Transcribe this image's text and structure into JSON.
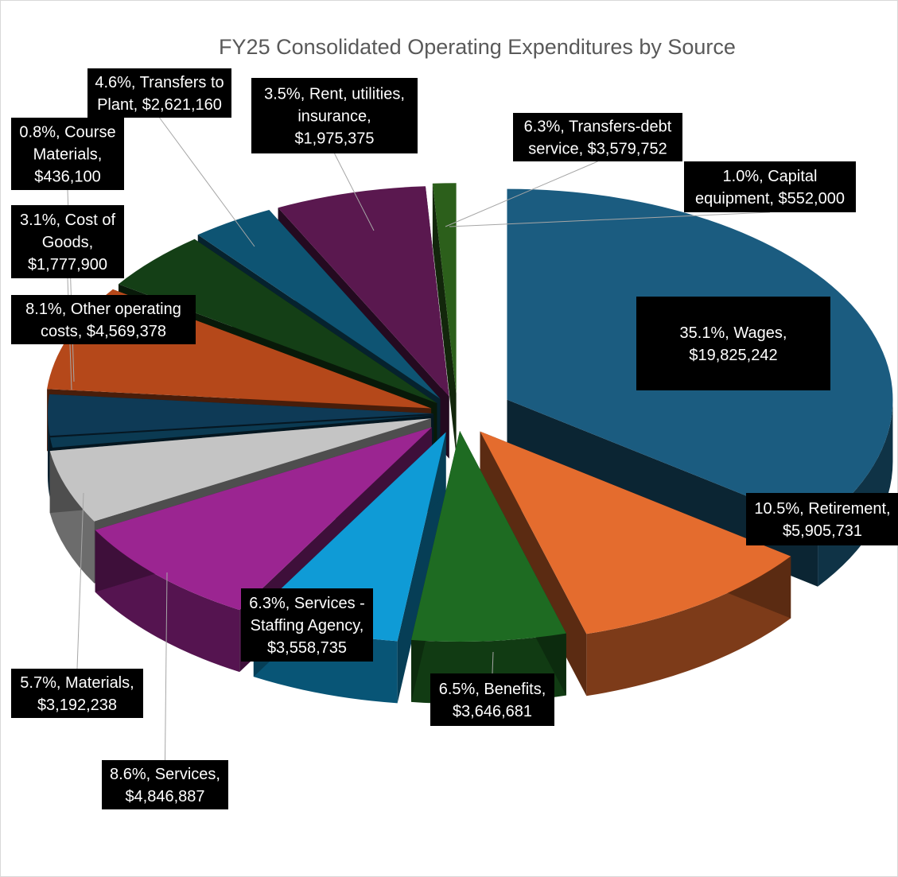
{
  "chart_data": {
    "type": "pie",
    "variant": "3d-exploded",
    "title": "FY25 Consolidated Operating Expenditures by Source",
    "slices": [
      {
        "label": "35.1%, Wages, $19,825,242",
        "percent": 35.1,
        "value": 19825242,
        "color": "#1b5c80"
      },
      {
        "label": "10.5%, Retirement, $5,905,731",
        "percent": 10.5,
        "value": 5905731,
        "color": "#e46c2e"
      },
      {
        "label": "6.5%, Benefits, $3,646,681",
        "percent": 6.5,
        "value": 3646681,
        "color": "#1e6b22"
      },
      {
        "label": "6.3%, Services - Staffing Agency, $3,558,735",
        "percent": 6.3,
        "value": 3558735,
        "color": "#0f9bd6"
      },
      {
        "label": "8.6%, Services, $4,846,887",
        "percent": 8.6,
        "value": 4846887,
        "color": "#9b2591"
      },
      {
        "label": "5.7%, Materials, $3,192,238",
        "percent": 5.7,
        "value": 3192238,
        "color": "#c4c4c4"
      },
      {
        "label": "0.8%, Course Materials, $436,100",
        "percent": 0.8,
        "value": 436100,
        "color": "#0b3a52"
      },
      {
        "label": "3.1%, Cost of Goods, $1,777,900",
        "percent": 3.1,
        "value": 1777900,
        "color": "#0e3a56"
      },
      {
        "label": "8.1%, Other operating costs, $4,569,378",
        "percent": 8.1,
        "value": 4569378,
        "color": "#b5481a"
      },
      {
        "label": "4.6%, Transfers to Plant, $2,621,160",
        "percent": 4.6,
        "value": 2621160,
        "color": "#143f16"
      },
      {
        "label": "3.5%, Rent, utilities, insurance, $1,975,375",
        "percent": 3.5,
        "value": 1975375,
        "color": "#0e5473"
      },
      {
        "label": "6.3%, Transfers-debt service, $3,579,752",
        "percent": 6.3,
        "value": 3579752,
        "color": "#5a184f"
      },
      {
        "label": "1.0%, Capital equipment, $552,000",
        "percent": 1.0,
        "value": 552000,
        "color": "#2c5f1b"
      }
    ],
    "extra_slice_color": "#1b8cc4",
    "legend": "none",
    "data_labels": "callouts"
  },
  "callouts": [
    {
      "lines": [
        "35.1%, Wages,",
        "$19,825,242"
      ]
    },
    {
      "lines": [
        "10.5%, Retirement,",
        "$5,905,731"
      ]
    },
    {
      "lines": [
        "6.5%, Benefits,",
        "$3,646,681"
      ]
    },
    {
      "lines": [
        "6.3%, Services -",
        "Staffing Agency,",
        "$3,558,735"
      ]
    },
    {
      "lines": [
        "8.6%, Services,",
        "$4,846,887"
      ]
    },
    {
      "lines": [
        "5.7%, Materials,",
        "$3,192,238"
      ]
    },
    {
      "lines": [
        "0.8%, Course",
        "Materials,",
        "$436,100"
      ]
    },
    {
      "lines": [
        "3.1%, Cost of",
        "Goods,",
        "$1,777,900"
      ]
    },
    {
      "lines": [
        "8.1%, Other operating",
        "costs, $4,569,378"
      ]
    },
    {
      "lines": [
        "4.6%, Transfers to",
        "Plant, $2,621,160"
      ]
    },
    {
      "lines": [
        "3.5%, Rent, utilities,",
        "insurance,",
        "$1,975,375"
      ]
    },
    {
      "lines": [
        "6.3%, Transfers-debt",
        "service, $3,579,752"
      ]
    },
    {
      "lines": [
        "1.0%, Capital",
        "equipment, $552,000"
      ]
    }
  ]
}
